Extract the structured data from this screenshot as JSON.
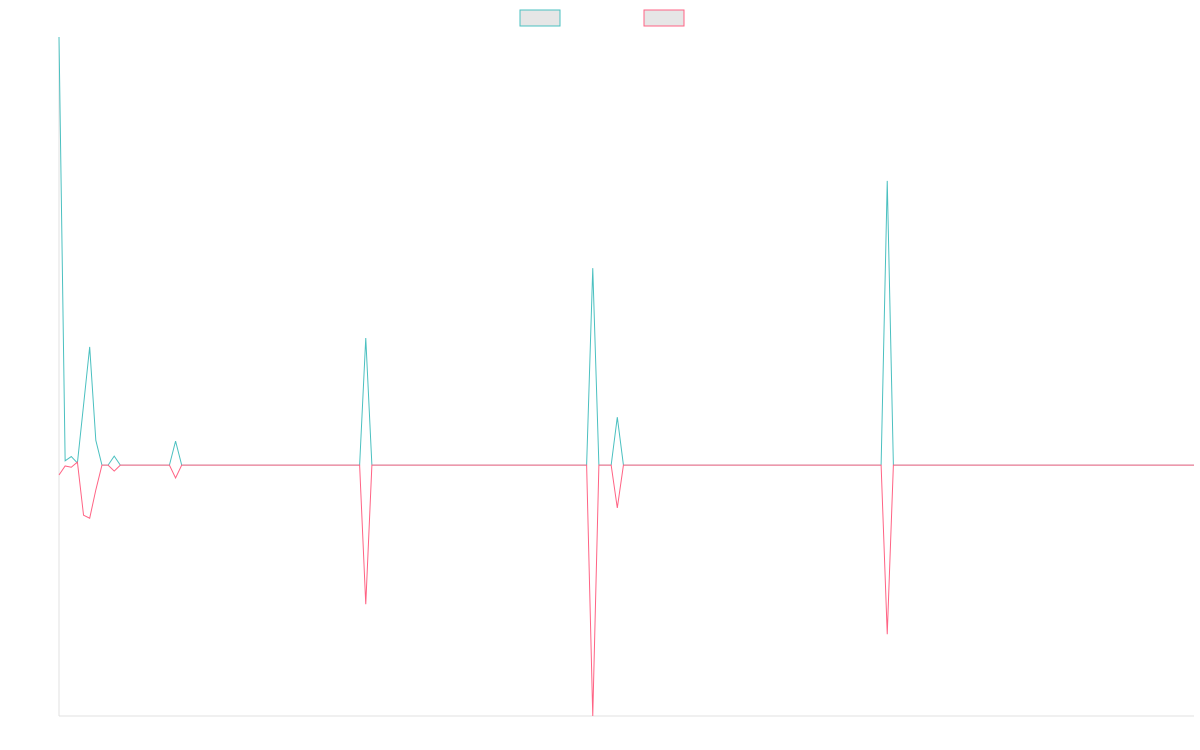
{
  "chart_data": {
    "type": "line",
    "ylim": [
      -58.6,
      100
    ],
    "series": [
      {
        "color": "#4bc0c0",
        "values": [
          100,
          1,
          2,
          0.5,
          14,
          27.6,
          5.8,
          0,
          0,
          2.1,
          0,
          0,
          0,
          0,
          0,
          0,
          0,
          0,
          0,
          5.6,
          0,
          0,
          0,
          0,
          0,
          0,
          0,
          0,
          0,
          0,
          0,
          0,
          0,
          0,
          0,
          0,
          0,
          0,
          0,
          0,
          0,
          0,
          0,
          0,
          0,
          0,
          0,
          0,
          0,
          0,
          29.7,
          0,
          0,
          0,
          0,
          0,
          0,
          0,
          0,
          0,
          0,
          0,
          0,
          0,
          0,
          0,
          0,
          0,
          0,
          0,
          0,
          0,
          0,
          0,
          0,
          0,
          0,
          0,
          0,
          0,
          0,
          0,
          0,
          0,
          0,
          0,
          0,
          46,
          0,
          0,
          0,
          11.2,
          0,
          0,
          0,
          0,
          0,
          0,
          0,
          0,
          0,
          0,
          0,
          0,
          0,
          0,
          0,
          0,
          0,
          0,
          0,
          0,
          0,
          0,
          0,
          0,
          0,
          0,
          0,
          0,
          0,
          0,
          0,
          0,
          0,
          0,
          0,
          0,
          0,
          0,
          0,
          0,
          0,
          0,
          0,
          66.4,
          0,
          0,
          0,
          0,
          0,
          0,
          0,
          0,
          0,
          0,
          0,
          0,
          0,
          0,
          0,
          0,
          0,
          0,
          0,
          0,
          0,
          0,
          0,
          0,
          0,
          0,
          0,
          0,
          0,
          0,
          0,
          0,
          0,
          0,
          0,
          0,
          0,
          0,
          0,
          0,
          0,
          0,
          0,
          0,
          0,
          0,
          0,
          0,
          0,
          0
        ]
      },
      {
        "color": "#ff6384",
        "values": [
          -2.3,
          -0.2,
          -0.5,
          0.7,
          -11.7,
          -12.4,
          -5.8,
          0,
          0,
          -1.4,
          0,
          0,
          0,
          0,
          0,
          0,
          0,
          0,
          0,
          -3,
          0,
          0,
          0,
          0,
          0,
          0,
          0,
          0,
          0,
          0,
          0,
          0,
          0,
          0,
          0,
          0,
          0,
          0,
          0,
          0,
          0,
          0,
          0,
          0,
          0,
          0,
          0,
          0,
          0,
          0,
          -32.5,
          0,
          0,
          0,
          0,
          0,
          0,
          0,
          0,
          0,
          0,
          0,
          0,
          0,
          0,
          0,
          0,
          0,
          0,
          0,
          0,
          0,
          0,
          0,
          0,
          0,
          0,
          0,
          0,
          0,
          0,
          0,
          0,
          0,
          0,
          0,
          0,
          -58.6,
          0,
          0,
          0,
          -10,
          0,
          0,
          0,
          0,
          0,
          0,
          0,
          0,
          0,
          0,
          0,
          0,
          0,
          0,
          0,
          0,
          0,
          0,
          0,
          0,
          0,
          0,
          0,
          0,
          0,
          0,
          0,
          0,
          0,
          0,
          0,
          0,
          0,
          0,
          0,
          0,
          0,
          0,
          0,
          0,
          0,
          0,
          0,
          -39.5,
          0,
          0,
          0,
          0,
          0,
          0,
          0,
          0,
          0,
          0,
          0,
          0,
          0,
          0,
          0,
          0,
          0,
          0,
          0,
          0,
          0,
          0,
          0,
          0,
          0,
          0,
          0,
          0,
          0,
          0,
          0,
          0,
          0,
          0,
          0,
          0,
          0,
          0,
          0,
          0,
          0,
          0,
          0,
          0,
          0,
          0,
          0,
          0,
          0,
          0
        ]
      }
    ]
  }
}
